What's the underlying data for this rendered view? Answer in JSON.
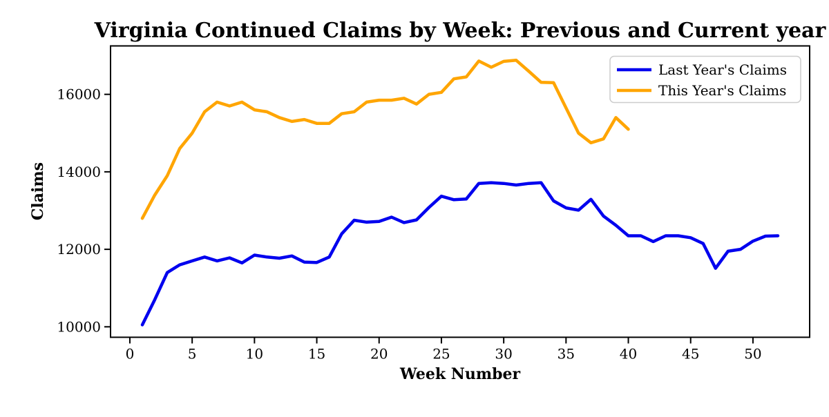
{
  "chart_data": {
    "type": "line",
    "title": "Virginia Continued Claims by Week: Previous and Current year",
    "xlabel": "Week Number",
    "ylabel": "Claims",
    "xlim": [
      -1.55,
      54.55
    ],
    "ylim": [
      9730,
      17250
    ],
    "xticks": [
      0,
      5,
      10,
      15,
      20,
      25,
      30,
      35,
      40,
      45,
      50
    ],
    "yticks": [
      10000,
      12000,
      14000,
      16000
    ],
    "grid": false,
    "legend_position": "upper right",
    "axis_color": "#000000",
    "series": [
      {
        "name": "Last Year's Claims",
        "color": "#0000ee",
        "x": [
          1,
          2,
          3,
          4,
          5,
          6,
          7,
          8,
          9,
          10,
          11,
          12,
          13,
          14,
          15,
          16,
          17,
          18,
          19,
          20,
          21,
          22,
          23,
          24,
          25,
          26,
          27,
          28,
          29,
          30,
          31,
          32,
          33,
          34,
          35,
          36,
          37,
          38,
          39,
          40,
          41,
          42,
          43,
          44,
          45,
          46,
          47,
          48,
          49,
          50,
          51,
          52
        ],
        "values": [
          10050,
          10700,
          11400,
          11600,
          11700,
          11800,
          11700,
          11780,
          11650,
          11850,
          11800,
          11770,
          11830,
          11670,
          11660,
          11800,
          12400,
          12750,
          12700,
          12720,
          12830,
          12690,
          12760,
          13080,
          13370,
          13280,
          13300,
          13700,
          13720,
          13700,
          13660,
          13700,
          13720,
          13250,
          13070,
          13010,
          13290,
          12860,
          12620,
          12350,
          12350,
          12200,
          12350,
          12350,
          12300,
          12150,
          11510,
          11950,
          12000,
          12210,
          12340,
          12350
        ]
      },
      {
        "name": "This Year's Claims",
        "color": "#ffa500",
        "x": [
          1,
          2,
          3,
          4,
          5,
          6,
          7,
          8,
          9,
          10,
          11,
          12,
          13,
          14,
          15,
          16,
          17,
          18,
          19,
          20,
          21,
          22,
          23,
          24,
          25,
          26,
          27,
          28,
          29,
          30,
          31,
          32,
          33,
          34,
          35,
          36,
          37,
          38,
          39,
          40
        ],
        "values": [
          12800,
          13400,
          13900,
          14600,
          15000,
          15550,
          15800,
          15700,
          15800,
          15600,
          15550,
          15400,
          15300,
          15350,
          15250,
          15250,
          15500,
          15550,
          15800,
          15850,
          15850,
          15900,
          15750,
          16000,
          16050,
          16400,
          16450,
          16860,
          16700,
          16850,
          16880,
          16600,
          16310,
          16300,
          15650,
          15000,
          14750,
          14850,
          15400,
          15100
        ]
      }
    ]
  }
}
